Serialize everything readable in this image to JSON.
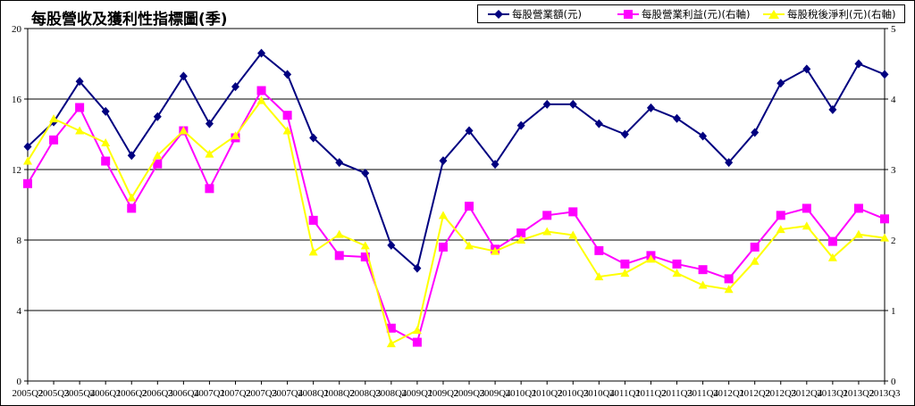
{
  "title": "每股營收及獲利性指標圖(季)",
  "chart_data": {
    "type": "line",
    "title": "每股營收及獲利性指標圖(季)",
    "categories": [
      "2005Q2",
      "2005Q3",
      "2005Q4",
      "2006Q1",
      "2006Q2",
      "2006Q3",
      "2006Q4",
      "2007Q1",
      "2007Q2",
      "2007Q3",
      "2007Q4",
      "2008Q1",
      "2008Q2",
      "2008Q3",
      "2008Q4",
      "2009Q1",
      "2009Q2",
      "2009Q3",
      "2009Q4",
      "2010Q1",
      "2010Q2",
      "2010Q3",
      "2010Q4",
      "2011Q1",
      "2011Q2",
      "2011Q3",
      "2011Q4",
      "2012Q1",
      "2012Q2",
      "2012Q3",
      "2012Q4",
      "2013Q1",
      "2013Q2",
      "2013Q3"
    ],
    "left_axis": {
      "ylim": [
        0,
        20
      ],
      "ticks": [
        "0",
        "4",
        "8",
        "12",
        "16",
        "20"
      ]
    },
    "right_axis": {
      "ylim": [
        0,
        5
      ],
      "ticks": [
        "0",
        "1",
        "2",
        "3",
        "4",
        "5"
      ]
    },
    "grid": true,
    "legend_position": "top-right",
    "series": [
      {
        "name": "每股營業額(元)",
        "axis": "left",
        "color": "#000080",
        "marker": "diamond",
        "values": [
          13.3,
          14.7,
          17.0,
          15.3,
          12.8,
          15.0,
          17.3,
          14.6,
          16.7,
          18.6,
          17.4,
          13.8,
          12.4,
          11.8,
          7.7,
          6.4,
          12.5,
          14.2,
          12.3,
          14.5,
          15.7,
          15.7,
          14.6,
          14.0,
          15.5,
          14.9,
          13.9,
          12.4,
          14.1,
          16.9,
          17.7,
          15.4,
          18.0,
          17.4
        ]
      },
      {
        "name": "每股營業利益(元)(右軸)",
        "axis": "right",
        "color": "#ff00ff",
        "marker": "square",
        "values": [
          2.8,
          3.42,
          3.88,
          3.12,
          2.45,
          3.08,
          3.55,
          2.73,
          3.45,
          4.12,
          3.77,
          2.28,
          1.78,
          1.76,
          0.75,
          0.55,
          1.9,
          2.48,
          1.87,
          2.1,
          2.35,
          2.4,
          1.85,
          1.66,
          1.78,
          1.66,
          1.58,
          1.45,
          1.9,
          2.35,
          2.45,
          1.98,
          2.45,
          2.3
        ]
      },
      {
        "name": "每股稅後淨利(元)(右軸)",
        "axis": "right",
        "color": "#ffff00",
        "marker": "triangle",
        "values": [
          3.12,
          3.72,
          3.55,
          3.38,
          2.6,
          3.2,
          3.55,
          3.22,
          3.48,
          3.98,
          3.55,
          1.83,
          2.08,
          1.92,
          0.53,
          0.72,
          2.35,
          1.92,
          1.84,
          2.0,
          2.12,
          2.07,
          1.48,
          1.53,
          1.73,
          1.53,
          1.36,
          1.3,
          1.7,
          2.15,
          2.2,
          1.75,
          2.08,
          2.03
        ]
      }
    ]
  }
}
